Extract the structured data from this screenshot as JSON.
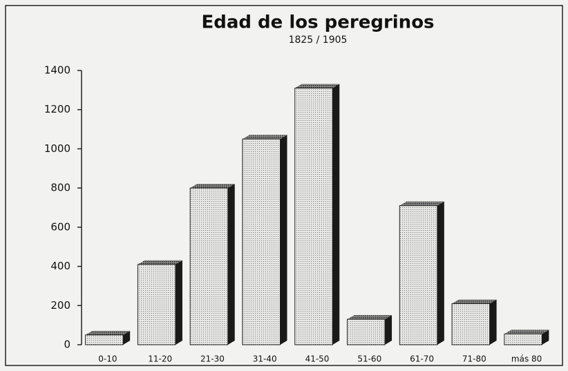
{
  "chart_data": {
    "type": "bar",
    "title": "Edad de los peregrinos",
    "subtitle": "1825 / 1905",
    "categories": [
      "0-10",
      "11-20",
      "21-30",
      "31-40",
      "41-50",
      "51-60",
      "61-70",
      "71-80",
      "más 80"
    ],
    "values": [
      50,
      410,
      800,
      1050,
      1310,
      130,
      710,
      210,
      55
    ],
    "color": "#d8d8d6",
    "ylim": [
      0,
      1400
    ],
    "yticks": [
      0,
      200,
      400,
      600,
      800,
      1000,
      1200,
      1400
    ],
    "grid": false
  }
}
